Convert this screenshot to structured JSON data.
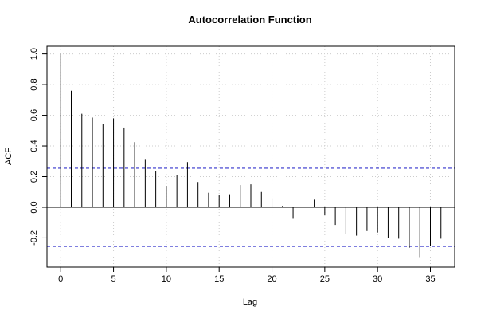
{
  "chart_data": {
    "type": "bar",
    "title": "Autocorrelation Function",
    "xlabel": "Lag",
    "ylabel": "ACF",
    "xlim": [
      -1.3,
      37.3
    ],
    "ylim": [
      -0.39,
      1.05
    ],
    "x_ticks": [
      0,
      5,
      10,
      15,
      20,
      25,
      30,
      35
    ],
    "y_ticks": [
      -0.2,
      0.0,
      0.2,
      0.4,
      0.6,
      0.8,
      1.0
    ],
    "x_tick_labels": [
      "0",
      "5",
      "10",
      "15",
      "20",
      "25",
      "30",
      "35"
    ],
    "y_tick_labels": [
      "-0.2",
      "0.0",
      "0.2",
      "0.4",
      "0.6",
      "0.8",
      "1.0"
    ],
    "grid": true,
    "lags": [
      0,
      1,
      2,
      3,
      4,
      5,
      6,
      7,
      8,
      9,
      10,
      11,
      12,
      13,
      14,
      15,
      16,
      17,
      18,
      19,
      20,
      21,
      22,
      23,
      24,
      25,
      26,
      27,
      28,
      29,
      30,
      31,
      32,
      33,
      34,
      35,
      36
    ],
    "values": [
      1.0,
      0.76,
      0.61,
      0.585,
      0.545,
      0.58,
      0.52,
      0.425,
      0.315,
      0.235,
      0.14,
      0.21,
      0.295,
      0.165,
      0.095,
      0.08,
      0.085,
      0.145,
      0.15,
      0.1,
      0.06,
      0.01,
      -0.07,
      0.0,
      0.05,
      -0.05,
      -0.115,
      -0.175,
      -0.185,
      -0.155,
      -0.165,
      -0.2,
      -0.205,
      -0.265,
      -0.325,
      -0.255,
      -0.205
    ],
    "confidence_bound": 0.255,
    "colors": {
      "bars": "#000000",
      "confidence": "#3333cc",
      "grid": "#cccccc",
      "zero_line": "#000000"
    }
  }
}
